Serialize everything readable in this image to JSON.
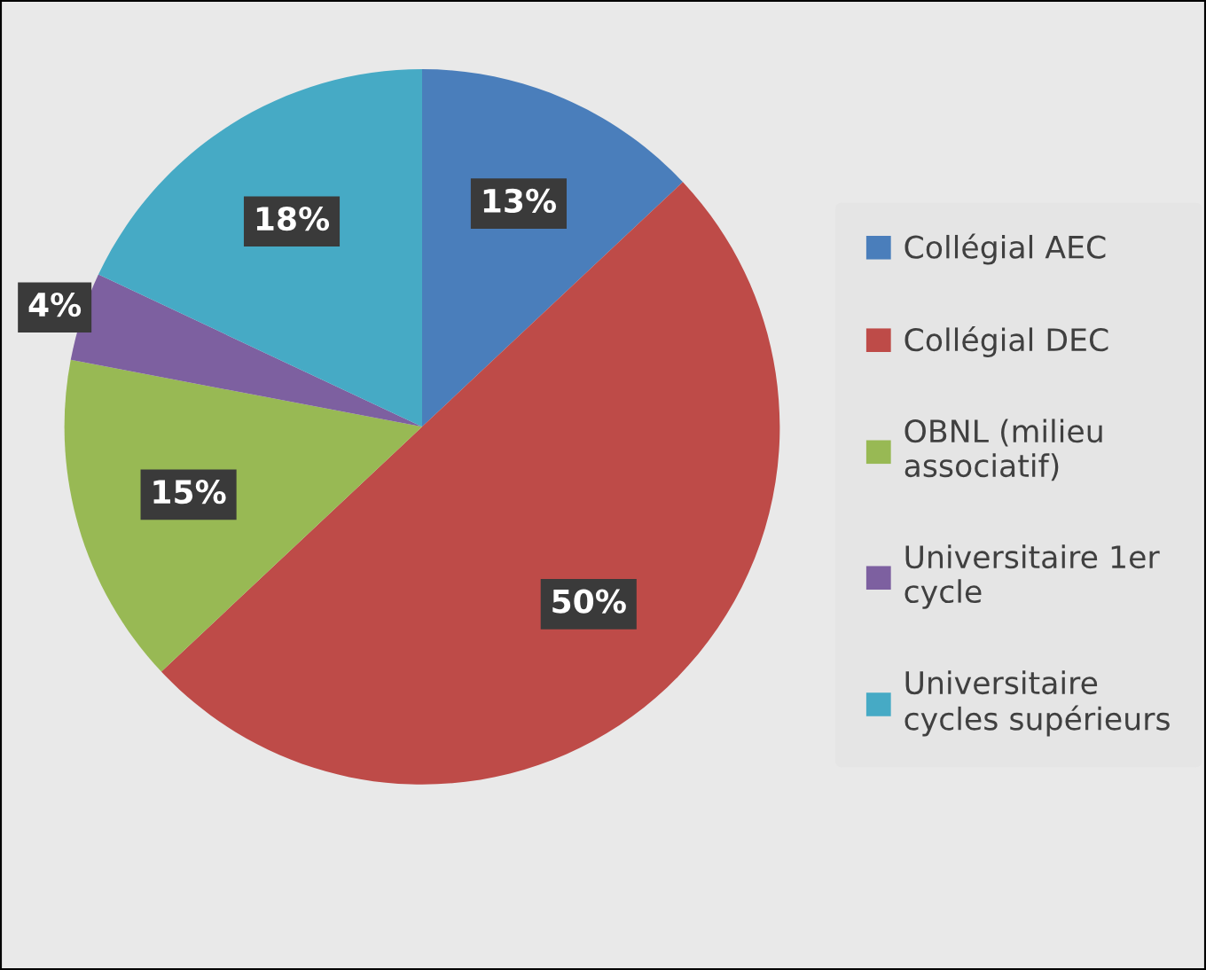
{
  "chart_data": {
    "type": "pie",
    "categories": [
      "Collégial AEC",
      "Collégial DEC",
      "OBNL (milieu\nassociatif)",
      "Universitaire 1er\ncycle",
      "Universitaire\ncycles supérieurs"
    ],
    "values": [
      13,
      50,
      15,
      4,
      18
    ],
    "colors": [
      "#4a7ebb",
      "#be4b48",
      "#98b954",
      "#7d60a0",
      "#46aac5"
    ],
    "value_labels": [
      "13%",
      "50%",
      "15%",
      "4%",
      "18%"
    ],
    "legend": "right"
  }
}
